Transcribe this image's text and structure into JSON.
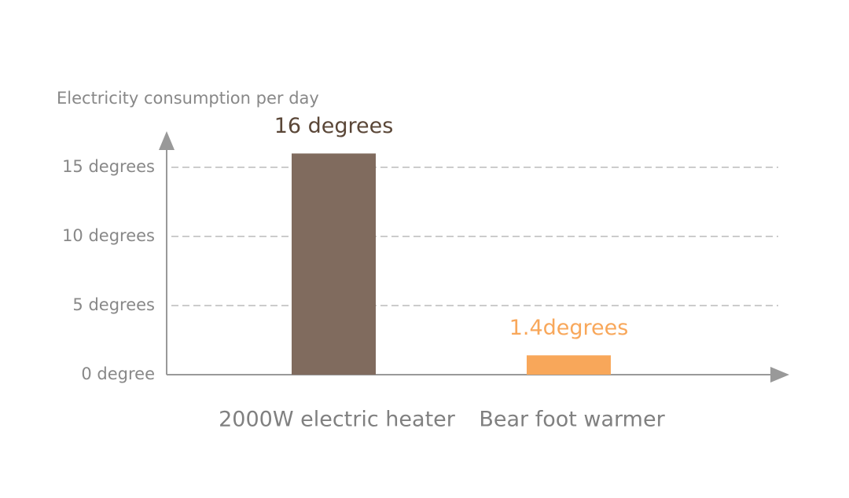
{
  "chart_data": {
    "type": "bar",
    "y_label": "Electricity consumption per day",
    "categories": [
      "2000W electric heater",
      "Bear foot warmer"
    ],
    "values": [
      16,
      1.4
    ],
    "value_labels": [
      "16 degrees",
      "1.4degrees"
    ],
    "colors": [
      "#806b5e",
      "#f8a75a"
    ],
    "value_label_colors": [
      "#5a4637",
      "#f8a75a"
    ],
    "ylim": [
      0,
      17.5
    ],
    "yticks": [
      {
        "value": 0,
        "label": "0 degree"
      },
      {
        "value": 5,
        "label": "5 degrees"
      },
      {
        "value": 10,
        "label": "10 degrees"
      },
      {
        "value": 15,
        "label": "15 degrees"
      }
    ],
    "grid": true
  }
}
